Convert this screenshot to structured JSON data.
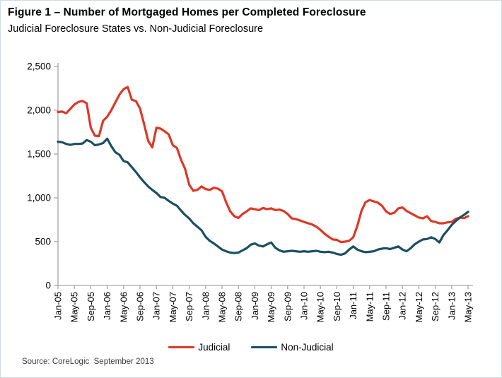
{
  "header": {
    "title": "Figure 1 – Number of Mortgaged Homes per Completed Foreclosure",
    "subtitle": "Judicial Foreclosure States vs. Non-Judicial Foreclosure"
  },
  "source_note": "Source: CoreLogic  September 2013",
  "legend": {
    "judicial_label": "Judicial",
    "non_judicial_label": "Non-Judicial"
  },
  "colors": {
    "judicial": "#DD3826",
    "non_judicial": "#1B4F63",
    "axis": "#A6A6A6",
    "text": "#000000"
  },
  "chart_data": {
    "type": "line",
    "title": "Figure 1 – Number of Mortgaged Homes per Completed Foreclosure",
    "subtitle": "Judicial Foreclosure States vs. Non-Judicial Foreclosure",
    "xlabel": "",
    "ylabel": "",
    "x_start": "Jan-05",
    "x_end": "May-13",
    "x_frequency": "monthly",
    "x_tick_labels": [
      "Jan-05",
      "May-05",
      "Sep-05",
      "Jan-06",
      "May-06",
      "Sep-06",
      "Jan-07",
      "May-07",
      "Sep-07",
      "Jan-08",
      "May-08",
      "Sep-08",
      "Jan-09",
      "May-09",
      "Sep-09",
      "Jan-10",
      "May-10",
      "Sep-10",
      "Jan-11",
      "May-11",
      "Sep-11",
      "Jan-12",
      "May-12",
      "Sep-12",
      "Jan-13",
      "May-13"
    ],
    "x_tick_every_n_points": 4,
    "ylim": [
      0,
      2500
    ],
    "y_ticks": [
      0,
      500,
      1000,
      1500,
      2000,
      2500
    ],
    "y_tick_labels": [
      "0",
      "500",
      "1,000",
      "1,500",
      "2,000",
      "2,500"
    ],
    "grid": false,
    "legend_position": "bottom-center",
    "series": [
      {
        "name": "Judicial",
        "color": "#DD3826",
        "values": [
          1980,
          1985,
          1965,
          2015,
          2065,
          2095,
          2105,
          2080,
          1800,
          1710,
          1705,
          1880,
          1925,
          2000,
          2090,
          2180,
          2240,
          2265,
          2120,
          2105,
          2020,
          1840,
          1650,
          1575,
          1800,
          1790,
          1760,
          1725,
          1600,
          1570,
          1435,
          1330,
          1150,
          1080,
          1090,
          1130,
          1100,
          1090,
          1115,
          1105,
          1075,
          950,
          845,
          790,
          770,
          815,
          845,
          880,
          870,
          860,
          885,
          870,
          880,
          860,
          865,
          850,
          815,
          765,
          758,
          742,
          725,
          710,
          695,
          670,
          635,
          590,
          555,
          525,
          520,
          495,
          500,
          510,
          550,
          680,
          850,
          950,
          975,
          960,
          945,
          910,
          845,
          815,
          830,
          880,
          890,
          850,
          825,
          800,
          775,
          765,
          790,
          735,
          725,
          710,
          710,
          720,
          725,
          760,
          775,
          768,
          790
        ]
      },
      {
        "name": "Non-Judicial",
        "color": "#1B4F63",
        "values": [
          1640,
          1635,
          1615,
          1605,
          1615,
          1615,
          1620,
          1660,
          1640,
          1600,
          1610,
          1625,
          1675,
          1590,
          1520,
          1490,
          1420,
          1405,
          1350,
          1295,
          1235,
          1180,
          1130,
          1090,
          1055,
          1010,
          1000,
          965,
          935,
          910,
          855,
          805,
          765,
          710,
          670,
          630,
          555,
          510,
          480,
          445,
          410,
          390,
          375,
          370,
          375,
          400,
          425,
          465,
          480,
          455,
          445,
          470,
          490,
          430,
          400,
          385,
          390,
          395,
          390,
          385,
          390,
          385,
          390,
          395,
          385,
          380,
          385,
          375,
          360,
          350,
          365,
          410,
          445,
          410,
          390,
          380,
          385,
          390,
          410,
          420,
          425,
          415,
          430,
          445,
          410,
          390,
          425,
          470,
          500,
          525,
          530,
          550,
          530,
          490,
          575,
          630,
          690,
          735,
          775,
          805,
          840
        ]
      }
    ]
  }
}
